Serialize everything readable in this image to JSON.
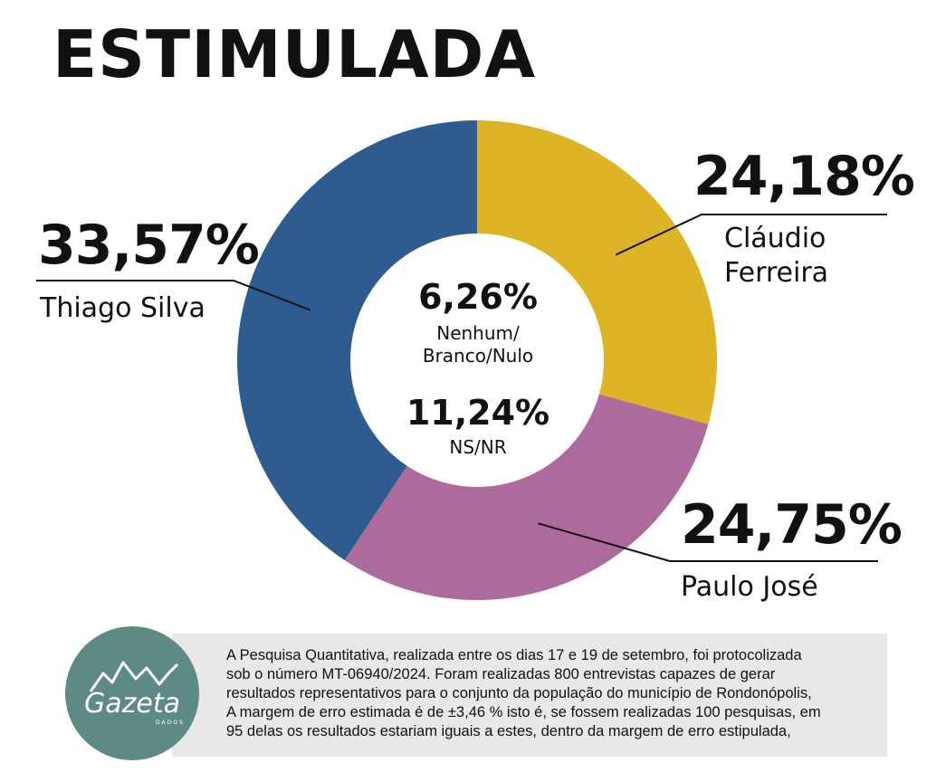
{
  "chart_data": {
    "type": "pie",
    "title": "ESTIMULADA",
    "slices": [
      {
        "name": "Cláudio Ferreira",
        "name_lines": [
          "Cláudio",
          "Ferreira"
        ],
        "value": 24.18,
        "label": "24,18%",
        "color": "#dcb425"
      },
      {
        "name": "Paulo José",
        "name_lines": [
          "Paulo José"
        ],
        "value": 24.75,
        "label": "24,75%",
        "color": "#ad6a9c"
      },
      {
        "name": "Thiago Silva",
        "name_lines": [
          "Thiago Silva"
        ],
        "value": 33.57,
        "label": "33,57%",
        "color": "#2e5b90"
      }
    ],
    "center": [
      {
        "value": 6.26,
        "label": "6,26%",
        "name_lines": [
          "Nenhum/",
          "Branco/Nulo"
        ]
      },
      {
        "value": 11.24,
        "label": "11,24%",
        "name_lines": [
          "NS/NR"
        ]
      }
    ]
  },
  "footer": {
    "lines": [
      "A Pesquisa Quantitativa, realizada entre os dias 17 e 19 de setembro, foi protocolizada",
      "sob o número MT-06940/2024. Foram realizadas 800 entrevistas capazes de gerar",
      "resultados representativos para o conjunto da população do município de Rondonópolis,",
      "A margem de erro estimada é de ±3,46 %  isto é, se fossem realizadas 100 pesquisas, em",
      "95 delas os resultados estariam iguais a estes, dentro da margem de erro estipulada,"
    ]
  },
  "logo": {
    "word": "Gazeta",
    "sub": "DADOS",
    "color": "#5e8a86"
  }
}
